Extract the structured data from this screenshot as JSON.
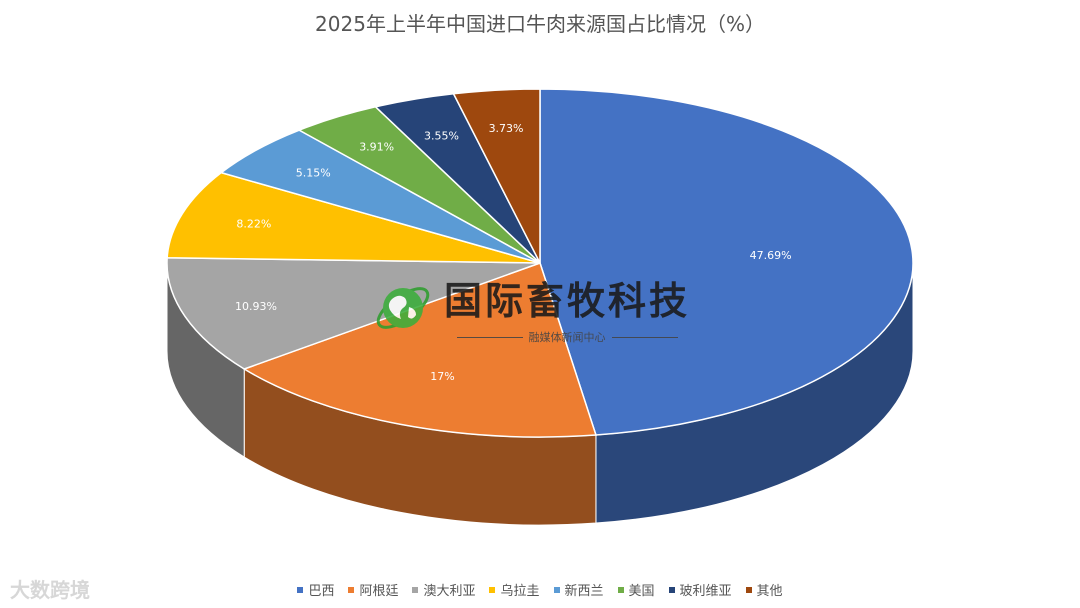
{
  "chart_data": {
    "type": "pie",
    "title": "2025年上半年中国进口牛肉来源国占比情况（%）",
    "categories": [
      "巴西",
      "阿根廷",
      "澳大利亚",
      "乌拉圭",
      "新西兰",
      "美国",
      "玻利维亚",
      "其他"
    ],
    "values": [
      47.69,
      17,
      10.93,
      8.22,
      5.15,
      3.91,
      3.55,
      3.73
    ],
    "labels": [
      "47.69%",
      "17%",
      "10.93%",
      "8.22%",
      "5.15%",
      "3.91%",
      "3.55%",
      "3.73%"
    ],
    "colors": [
      "#4472c4",
      "#ed7d31",
      "#a5a5a5",
      "#ffc000",
      "#5b9bd5",
      "#70ad47",
      "#264478",
      "#9e480e"
    ],
    "legend_position": "bottom",
    "style": "3d"
  },
  "watermark": {
    "title": "国际畜牧科技",
    "subtitle": "融媒体新闻中心",
    "icon": "globe-icon"
  },
  "corner_logo": {
    "text": "大数跨境"
  }
}
